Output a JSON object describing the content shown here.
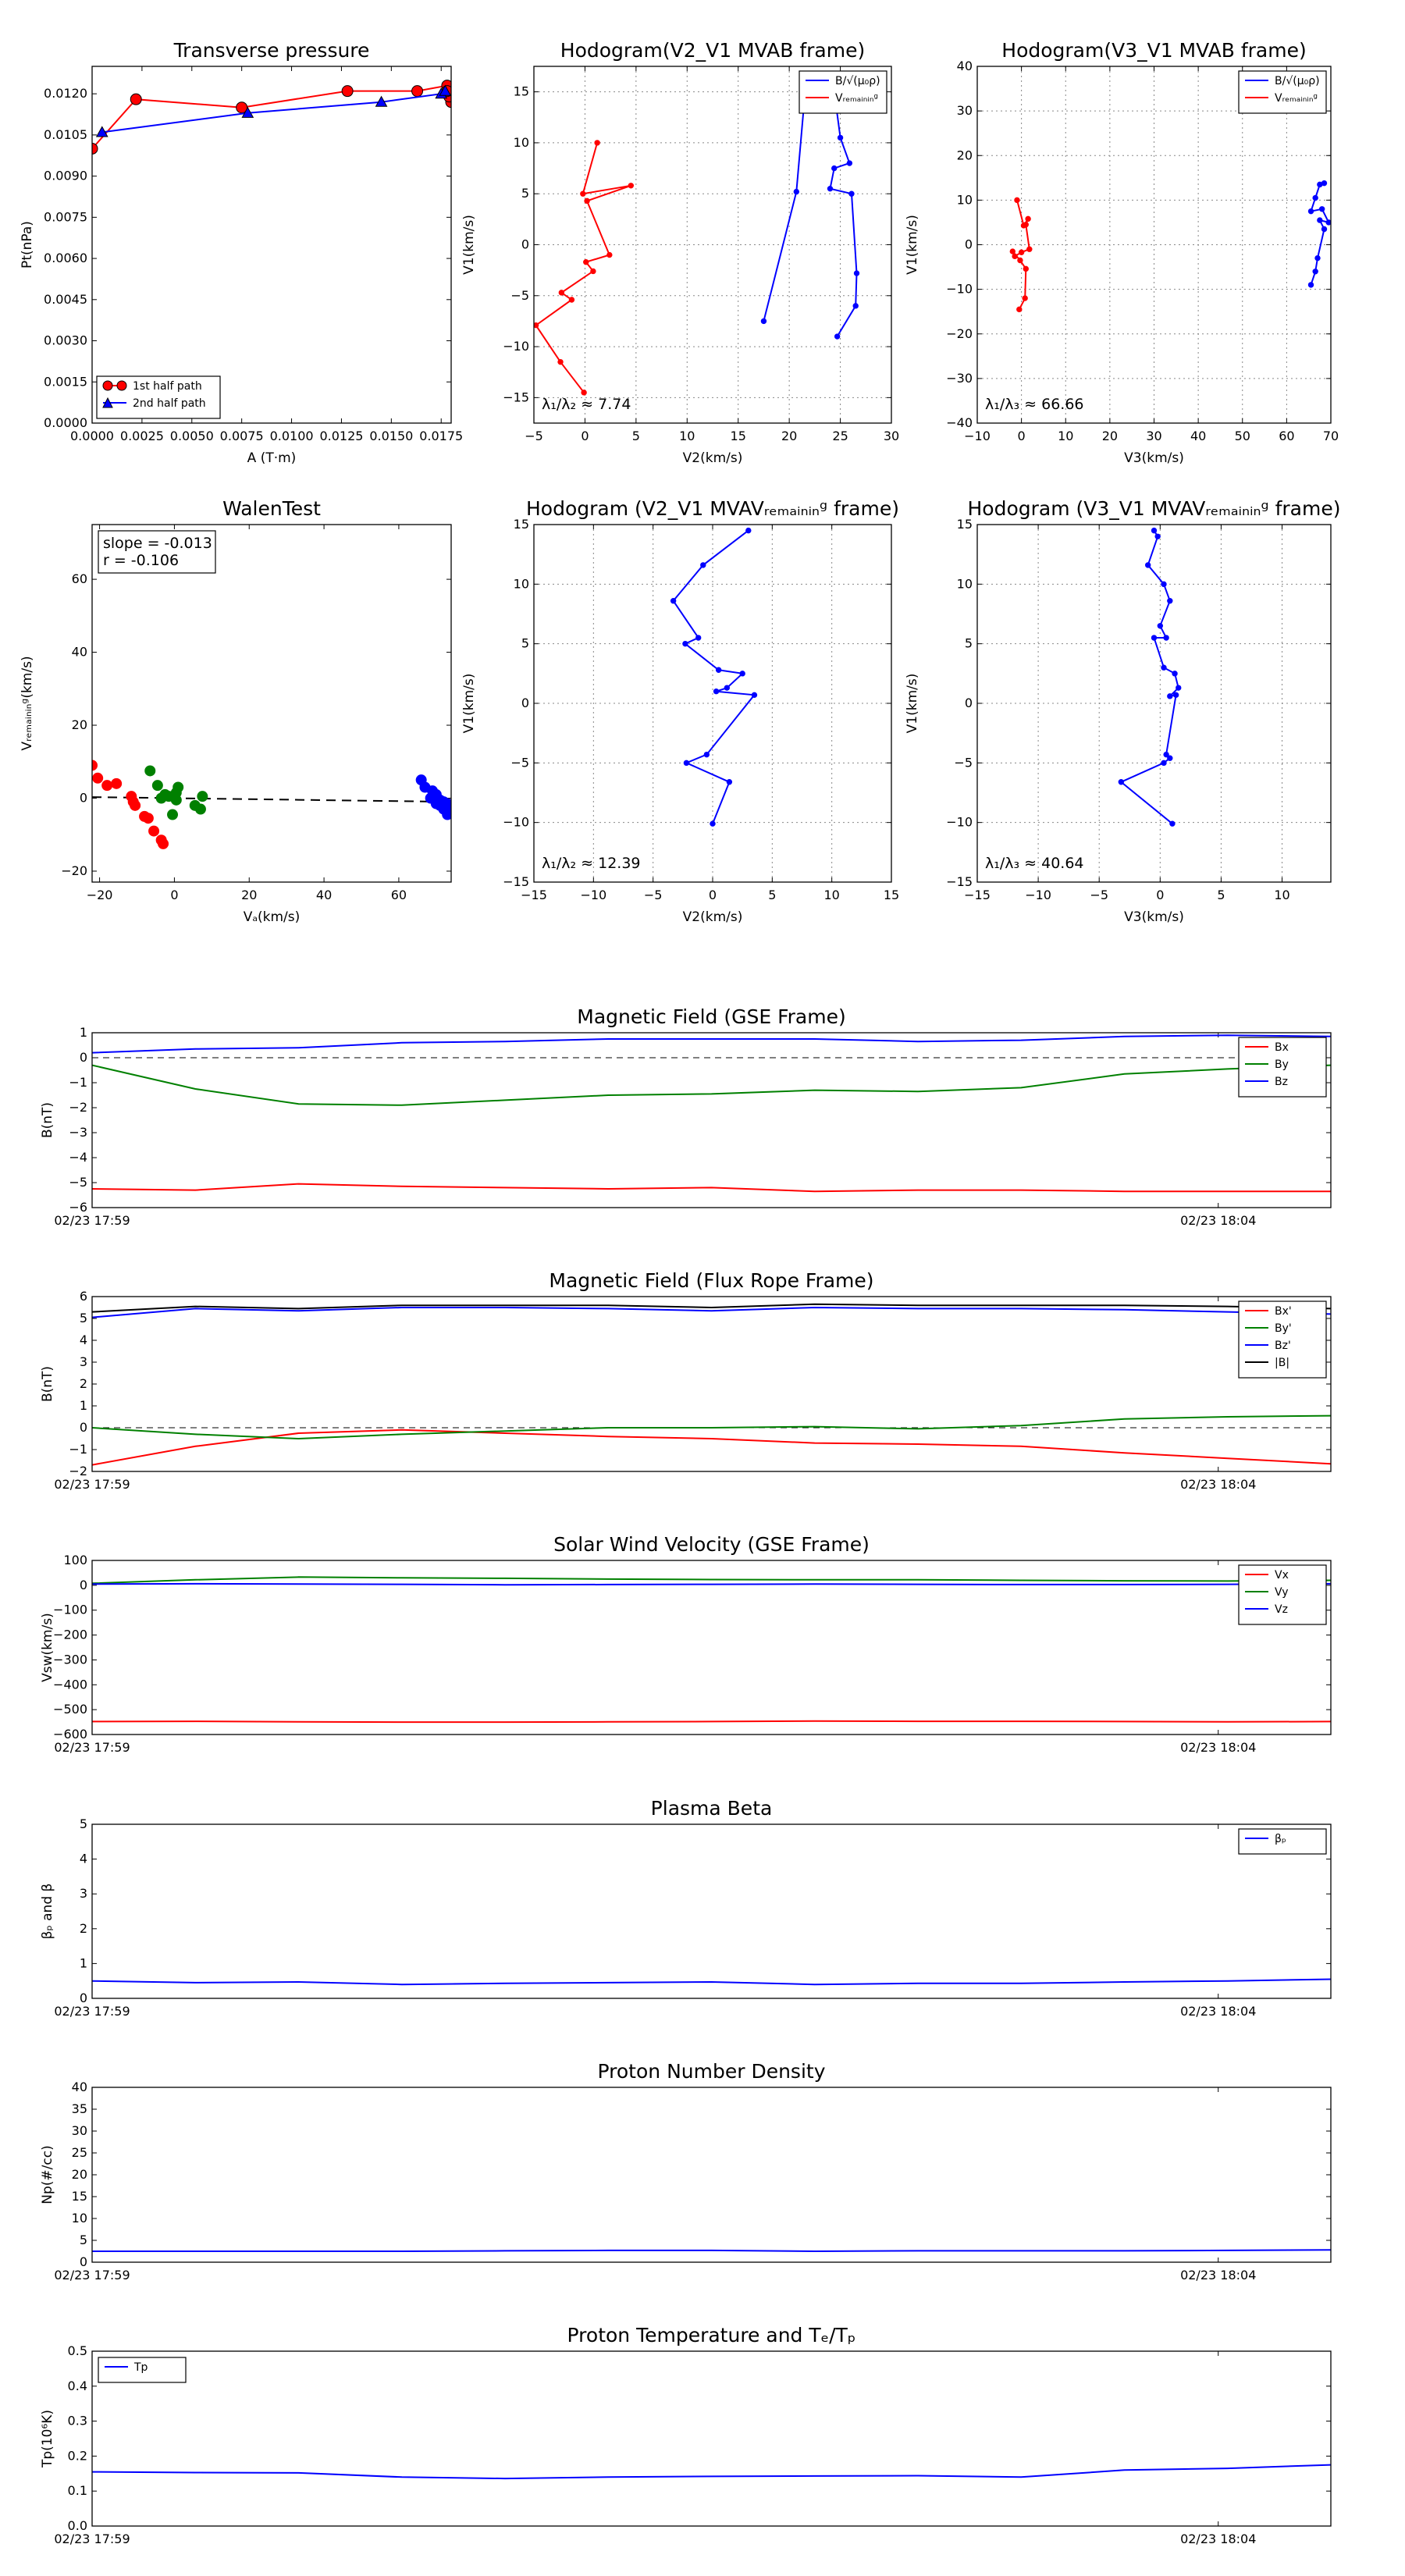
{
  "chart_data": [
    {
      "id": "p1",
      "type": "line",
      "title": "Transverse pressure",
      "xlabel": "A (T·m)",
      "ylabel": "Pt(nPa)",
      "xlim": [
        0,
        0.018
      ],
      "ylim": [
        0,
        0.013
      ],
      "xticks": [
        "0.0000",
        "0.0025",
        "0.0050",
        "0.0075",
        "0.0100",
        "0.0125",
        "0.0150",
        "0.0175"
      ],
      "yticks": [
        "0.0000",
        "0.0015",
        "0.0030",
        "0.0045",
        "0.0060",
        "0.0075",
        "0.0090",
        "0.0105",
        "0.0120"
      ],
      "grid": false,
      "legend_position": "lower-left",
      "series": [
        {
          "name": "1st half path",
          "color": "#ff0000",
          "marker": "circle",
          "x": [
            0.0,
            0.0022,
            0.0075,
            0.0128,
            0.0163,
            0.0178,
            0.018,
            0.0179,
            0.0178
          ],
          "y": [
            0.01,
            0.0118,
            0.0115,
            0.0121,
            0.0121,
            0.0123,
            0.0117,
            0.0119,
            0.0121
          ]
        },
        {
          "name": "2nd half path",
          "color": "#0000ff",
          "marker": "triangle",
          "x": [
            0.0005,
            0.0078,
            0.0145,
            0.0175,
            0.0177
          ],
          "y": [
            0.0106,
            0.0113,
            0.0117,
            0.012,
            0.0121
          ]
        }
      ]
    },
    {
      "id": "p2",
      "type": "line",
      "title": "Hodogram(V2_V1 MVAB frame)",
      "xlabel": "V2(km/s)",
      "ylabel": "V1(km/s)",
      "xlim": [
        -5,
        30
      ],
      "ylim": [
        -17.5,
        17.5
      ],
      "xticks": [
        "−5",
        "0",
        "5",
        "10",
        "15",
        "20",
        "25",
        "30"
      ],
      "yticks": [
        "−15",
        "−10",
        "−5",
        "0",
        "5",
        "10",
        "15"
      ],
      "grid": true,
      "legend_position": "upper-right",
      "annotation": "λ₁/λ₂ ≈ 7.74",
      "series": [
        {
          "name": "B/√(μ₀ρ)",
          "color": "#0000ff",
          "marker": "dot",
          "x": [
            17.5,
            20.7,
            21.5,
            24.5,
            25.0,
            25.9,
            24.4,
            24.0,
            26.1,
            26.6,
            26.5,
            24.7
          ],
          "y": [
            -7.5,
            5.2,
            14.4,
            14.3,
            10.5,
            8.0,
            7.5,
            5.5,
            5.0,
            -2.8,
            -6.0,
            -9.0
          ]
        },
        {
          "name": "Vᵣₑₘₐᵢₙᵢₙᵍ",
          "color": "#ff0000",
          "marker": "dot",
          "x": [
            1.2,
            -0.2,
            4.5,
            0.2,
            2.4,
            0.1,
            0.8,
            -2.3,
            -1.3,
            -4.8,
            -2.4,
            -0.1
          ],
          "y": [
            10.0,
            5.0,
            5.8,
            4.3,
            -1.0,
            -1.7,
            -2.6,
            -4.7,
            -5.4,
            -7.9,
            -11.5,
            -14.5
          ]
        }
      ]
    },
    {
      "id": "p3",
      "type": "line",
      "title": "Hodogram(V3_V1 MVAB frame)",
      "xlabel": "V3(km/s)",
      "ylabel": "V1(km/s)",
      "xlim": [
        -10,
        70
      ],
      "ylim": [
        -40,
        40
      ],
      "xticks": [
        "−10",
        "0",
        "10",
        "20",
        "30",
        "40",
        "50",
        "60",
        "70"
      ],
      "yticks": [
        "−40",
        "−30",
        "−20",
        "−10",
        "0",
        "10",
        "20",
        "30",
        "40"
      ],
      "grid": true,
      "legend_position": "upper-right",
      "annotation": "λ₁/λ₃ ≈ 66.66",
      "series": [
        {
          "name": "B/√(μ₀ρ)",
          "color": "#0000ff",
          "marker": "dot",
          "x": [
            65.5,
            66.5,
            67.0,
            68.5,
            67.5,
            69.5,
            68.0,
            65.5,
            66.5,
            67.5,
            68.5
          ],
          "y": [
            -9.0,
            -6.0,
            -3.0,
            3.5,
            5.5,
            5.0,
            8.0,
            7.5,
            10.5,
            13.5,
            13.8
          ]
        },
        {
          "name": "Vᵣₑₘₐᵢₙᵢₙᵍ",
          "color": "#ff0000",
          "marker": "dot",
          "x": [
            -1.0,
            0.5,
            1.5,
            1.0,
            1.8,
            0.0,
            -1.5,
            -2.0,
            -0.3,
            1.0,
            0.8,
            -0.5
          ],
          "y": [
            10.0,
            4.3,
            5.8,
            4.5,
            -1.0,
            -1.7,
            -2.6,
            -1.5,
            -3.5,
            -5.4,
            -12.0,
            -14.5
          ]
        }
      ]
    },
    {
      "id": "p4",
      "type": "scatter",
      "title": "WalenTest",
      "xlabel": "Vₐ(km/s)",
      "ylabel": "Vᵣₑₘₐᵢₙᵢₙᵍ(km/s)",
      "xlim": [
        -22,
        74
      ],
      "ylim": [
        -23,
        75
      ],
      "xticks": [
        "−20",
        "0",
        "20",
        "40",
        "60"
      ],
      "yticks": [
        "−20",
        "0",
        "20",
        "40",
        "60"
      ],
      "grid": false,
      "annotation_lines": [
        "slope = -0.013",
        "r = -0.106"
      ],
      "fit_line": {
        "x": [
          -22,
          74
        ],
        "y": [
          0.3,
          -1.0
        ],
        "color": "#000000",
        "style": "dashed"
      },
      "series": [
        {
          "name": "red",
          "color": "#ff0000",
          "x": [
            -22.0,
            -20.5,
            -18.0,
            -15.5,
            -11.5,
            -11.0,
            -10.5,
            -8.0,
            -7.0,
            -5.5,
            -3.5,
            -3.0
          ],
          "y": [
            9.0,
            5.5,
            3.5,
            4.0,
            0.5,
            -1.0,
            -2.0,
            -5.0,
            -5.5,
            -9.0,
            -11.5,
            -12.5
          ]
        },
        {
          "name": "green",
          "color": "#008000",
          "x": [
            -6.5,
            -4.5,
            -3.5,
            -2.5,
            -1.5,
            -0.5,
            0.5,
            0.5,
            1.0,
            5.5,
            7.0,
            7.5
          ],
          "y": [
            7.5,
            3.5,
            0.0,
            1.0,
            0.5,
            -4.5,
            1.5,
            -0.5,
            3.0,
            -2.0,
            -3.0,
            0.5
          ]
        },
        {
          "name": "blue",
          "color": "#0000ff",
          "x": [
            66.0,
            67.0,
            68.5,
            69.0,
            70.0,
            70.0,
            71.0,
            71.0,
            72.0,
            72.0,
            72.5,
            73.0,
            73.0,
            73.5
          ],
          "y": [
            5.0,
            3.0,
            0.0,
            2.0,
            -1.5,
            1.0,
            -0.5,
            -2.0,
            -1.0,
            -3.0,
            -2.0,
            -4.5,
            -1.5,
            -2.5
          ]
        }
      ]
    },
    {
      "id": "p5",
      "type": "line",
      "title": "Hodogram (V2_V1 MVAVᵣₑₘₐᵢₙᵢₙᵍ frame)",
      "xlabel": "V2(km/s)",
      "ylabel": "V1(km/s)",
      "xlim": [
        -15,
        15
      ],
      "ylim": [
        -15,
        15
      ],
      "xticks": [
        "−15",
        "−10",
        "−5",
        "0",
        "5",
        "10",
        "15"
      ],
      "yticks": [
        "−15",
        "−10",
        "−5",
        "0",
        "5",
        "10",
        "15"
      ],
      "grid": true,
      "annotation": "λ₁/λ₂ ≈ 12.39",
      "series": [
        {
          "name": "V",
          "color": "#0000ff",
          "marker": "dot",
          "x": [
            3.0,
            -0.8,
            -3.3,
            -1.2,
            -2.3,
            0.5,
            2.5,
            1.2,
            0.3,
            3.5,
            -0.5,
            -2.2,
            1.4,
            0.0
          ],
          "y": [
            14.5,
            11.6,
            8.6,
            5.5,
            5.0,
            2.8,
            2.5,
            1.3,
            1.0,
            0.7,
            -4.3,
            -5.0,
            -6.6,
            -10.1
          ]
        }
      ]
    },
    {
      "id": "p6",
      "type": "line",
      "title": "Hodogram (V3_V1 MVAVᵣₑₘₐᵢₙᵢₙᵍ frame)",
      "xlabel": "V3(km/s)",
      "ylabel": "V1(km/s)",
      "xlim": [
        -15,
        14
      ],
      "ylim": [
        -15,
        15
      ],
      "xticks": [
        "−15",
        "−10",
        "−5",
        "0",
        "5",
        "10"
      ],
      "yticks": [
        "−15",
        "−10",
        "−5",
        "0",
        "5",
        "10",
        "15"
      ],
      "grid": true,
      "annotation": "λ₁/λ₃ ≈ 40.64",
      "series": [
        {
          "name": "V",
          "color": "#0000ff",
          "marker": "dot",
          "x": [
            -0.5,
            -0.2,
            -1.0,
            0.3,
            0.8,
            0.0,
            0.5,
            -0.5,
            0.3,
            1.2,
            1.5,
            0.8,
            1.3,
            0.5,
            0.8,
            0.3,
            -3.2,
            1.0
          ],
          "y": [
            14.5,
            14.0,
            11.6,
            10.0,
            8.6,
            6.5,
            5.5,
            5.5,
            3.0,
            2.5,
            1.3,
            0.6,
            0.7,
            -4.3,
            -4.6,
            -5.0,
            -6.6,
            -10.1
          ]
        }
      ]
    },
    {
      "id": "p7",
      "type": "line",
      "title": "Magnetic Field (GSE Frame)",
      "ylabel": "B(nT)",
      "ylim": [
        -6,
        1
      ],
      "yticks": [
        "−6",
        "−5",
        "−4",
        "−3",
        "−2",
        "−1",
        "0",
        "1"
      ],
      "time_span_minutes": [
        17.0,
        19.2
      ],
      "xticks": [
        {
          "t": 17.0,
          "label": "02/23 17:59"
        },
        {
          "t": 19.0,
          "label": "02/23 18:04"
        }
      ],
      "zero_line": true,
      "legend_position": "upper-right",
      "series": [
        {
          "name": "Bx",
          "color": "#ff0000",
          "y": [
            -5.25,
            -5.3,
            -5.05,
            -5.15,
            -5.2,
            -5.25,
            -5.2,
            -5.35,
            -5.3,
            -5.3,
            -5.35,
            -5.35,
            -5.35
          ]
        },
        {
          "name": "By",
          "color": "#008000",
          "y": [
            -0.3,
            -1.25,
            -1.85,
            -1.9,
            -1.7,
            -1.5,
            -1.45,
            -1.3,
            -1.35,
            -1.2,
            -0.65,
            -0.45,
            -0.3
          ]
        },
        {
          "name": "Bz",
          "color": "#0000ff",
          "y": [
            0.2,
            0.35,
            0.4,
            0.6,
            0.65,
            0.75,
            0.75,
            0.75,
            0.65,
            0.7,
            0.85,
            0.9,
            0.85
          ]
        }
      ]
    },
    {
      "id": "p8",
      "type": "line",
      "title": "Magnetic Field (Flux Rope Frame)",
      "ylabel": "B(nT)",
      "ylim": [
        -2,
        6
      ],
      "yticks": [
        "−2",
        "−1",
        "0",
        "1",
        "2",
        "3",
        "4",
        "5",
        "6"
      ],
      "time_span_minutes": [
        17.0,
        19.2
      ],
      "xticks": [
        {
          "t": 17.0,
          "label": "02/23 17:59"
        },
        {
          "t": 19.0,
          "label": "02/23 18:04"
        }
      ],
      "zero_line": true,
      "legend_position": "upper-right",
      "series": [
        {
          "name": "Bx'",
          "color": "#ff0000",
          "y": [
            -1.7,
            -0.85,
            -0.25,
            -0.1,
            -0.25,
            -0.4,
            -0.5,
            -0.7,
            -0.75,
            -0.85,
            -1.15,
            -1.4,
            -1.65
          ]
        },
        {
          "name": "By'",
          "color": "#008000",
          "y": [
            0.0,
            -0.3,
            -0.5,
            -0.3,
            -0.15,
            0.0,
            0.0,
            0.05,
            -0.05,
            0.1,
            0.4,
            0.5,
            0.55
          ]
        },
        {
          "name": "Bz'",
          "color": "#0000ff",
          "y": [
            5.05,
            5.45,
            5.35,
            5.5,
            5.5,
            5.45,
            5.35,
            5.5,
            5.45,
            5.45,
            5.4,
            5.3,
            5.2
          ]
        },
        {
          "name": "|B|",
          "color": "#000000",
          "y": [
            5.3,
            5.55,
            5.45,
            5.6,
            5.6,
            5.6,
            5.5,
            5.65,
            5.6,
            5.6,
            5.6,
            5.55,
            5.45
          ]
        }
      ]
    },
    {
      "id": "p9",
      "type": "line",
      "title": "Solar Wind Velocity (GSE Frame)",
      "ylabel": "Vsw(km/s)",
      "ylim": [
        -600,
        100
      ],
      "yticks": [
        "−600",
        "−500",
        "−400",
        "−300",
        "−200",
        "−100",
        "0",
        "100"
      ],
      "time_span_minutes": [
        17.0,
        19.2
      ],
      "xticks": [
        {
          "t": 17.0,
          "label": "02/23 17:59"
        },
        {
          "t": 19.0,
          "label": "02/23 18:04"
        }
      ],
      "legend_position": "upper-right",
      "series": [
        {
          "name": "Vx",
          "color": "#ff0000",
          "y": [
            -548,
            -547,
            -549,
            -550,
            -550,
            -549,
            -548,
            -546,
            -547,
            -547,
            -548,
            -549,
            -548
          ]
        },
        {
          "name": "Vy",
          "color": "#008000",
          "y": [
            8,
            22,
            33,
            30,
            28,
            25,
            23,
            22,
            22,
            20,
            18,
            17,
            20
          ]
        },
        {
          "name": "Vz",
          "color": "#0000ff",
          "y": [
            5,
            6,
            5,
            4,
            2,
            3,
            4,
            5,
            4,
            3,
            3,
            4,
            6
          ]
        }
      ]
    },
    {
      "id": "p10",
      "type": "line",
      "title": "Plasma Beta",
      "ylabel": "βₚ and β",
      "ylim": [
        0,
        5
      ],
      "yticks": [
        "0",
        "1",
        "2",
        "3",
        "4",
        "5"
      ],
      "time_span_minutes": [
        17.0,
        19.2
      ],
      "xticks": [
        {
          "t": 17.0,
          "label": "02/23 17:59"
        },
        {
          "t": 19.0,
          "label": "02/23 18:04"
        }
      ],
      "legend_position": "upper-right",
      "series": [
        {
          "name": "βₚ",
          "color": "#0000ff",
          "y": [
            0.5,
            0.45,
            0.47,
            0.4,
            0.43,
            0.45,
            0.47,
            0.4,
            0.43,
            0.43,
            0.47,
            0.5,
            0.55
          ]
        }
      ]
    },
    {
      "id": "p11",
      "type": "line",
      "title": "Proton Number Density",
      "ylabel": "Np(#/cc)",
      "ylim": [
        0,
        40
      ],
      "yticks": [
        "0",
        "5",
        "10",
        "15",
        "20",
        "25",
        "30",
        "35",
        "40"
      ],
      "time_span_minutes": [
        17.0,
        19.2
      ],
      "xticks": [
        {
          "t": 17.0,
          "label": "02/23 17:59"
        },
        {
          "t": 19.0,
          "label": "02/23 18:04"
        }
      ],
      "series": [
        {
          "name": "Np",
          "color": "#0000ff",
          "y": [
            2.5,
            2.5,
            2.5,
            2.5,
            2.6,
            2.7,
            2.7,
            2.5,
            2.6,
            2.6,
            2.6,
            2.7,
            2.8
          ]
        }
      ]
    },
    {
      "id": "p12",
      "type": "line",
      "title": "Proton Temperature and Tₑ/Tₚ",
      "ylabel": "Tp(10⁶K)",
      "ylim": [
        0,
        0.5
      ],
      "yticks": [
        "0.0",
        "0.1",
        "0.2",
        "0.3",
        "0.4",
        "0.5"
      ],
      "time_span_minutes": [
        17.0,
        19.2
      ],
      "xticks": [
        {
          "t": 17.0,
          "label": "02/23 17:59"
        },
        {
          "t": 19.0,
          "label": "02/23 18:04"
        }
      ],
      "legend_position": "upper-left",
      "series": [
        {
          "name": "Tp",
          "color": "#0000ff",
          "y": [
            0.155,
            0.153,
            0.152,
            0.14,
            0.136,
            0.14,
            0.142,
            0.143,
            0.144,
            0.14,
            0.16,
            0.165,
            0.175
          ]
        }
      ]
    }
  ]
}
